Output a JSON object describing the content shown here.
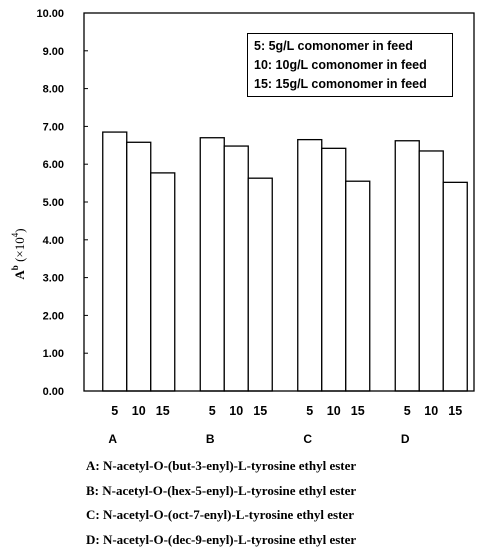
{
  "chart_data": {
    "type": "bar",
    "groups": [
      "A",
      "B",
      "C",
      "D"
    ],
    "bar_labels": [
      "5",
      "10",
      "15"
    ],
    "series": [
      {
        "name": "5",
        "values": [
          6.85,
          6.7,
          6.65,
          6.62
        ]
      },
      {
        "name": "10",
        "values": [
          6.58,
          6.48,
          6.42,
          6.35
        ]
      },
      {
        "name": "15",
        "values": [
          5.77,
          5.63,
          5.55,
          5.52
        ]
      }
    ],
    "ylabel_main": "A",
    "ylabel_sup": "b",
    "ylabel_unit_open": " (×10",
    "ylabel_unit_exp": "4",
    "ylabel_unit_close": ")",
    "ylim": [
      0,
      10
    ],
    "yticks": [
      "0.00",
      "1.00",
      "2.00",
      "3.00",
      "4.00",
      "5.00",
      "6.00",
      "7.00",
      "8.00",
      "9.00",
      "10.00"
    ],
    "grid": false,
    "legend_position": "top-right",
    "legend": [
      "5: 5g/L comonomer in feed",
      "10: 10g/L comonomer in feed",
      "15: 15g/L comonomer in feed"
    ],
    "notes": [
      "A: N-acetyl-O-(but-3-enyl)-L-tyrosine ethyl ester",
      "B: N-acetyl-O-(hex-5-enyl)-L-tyrosine ethyl ester",
      "C: N-acetyl-O-(oct-7-enyl)-L-tyrosine ethyl ester",
      "D: N-acetyl-O-(dec-9-enyl)-L-tyrosine ethyl ester"
    ]
  }
}
